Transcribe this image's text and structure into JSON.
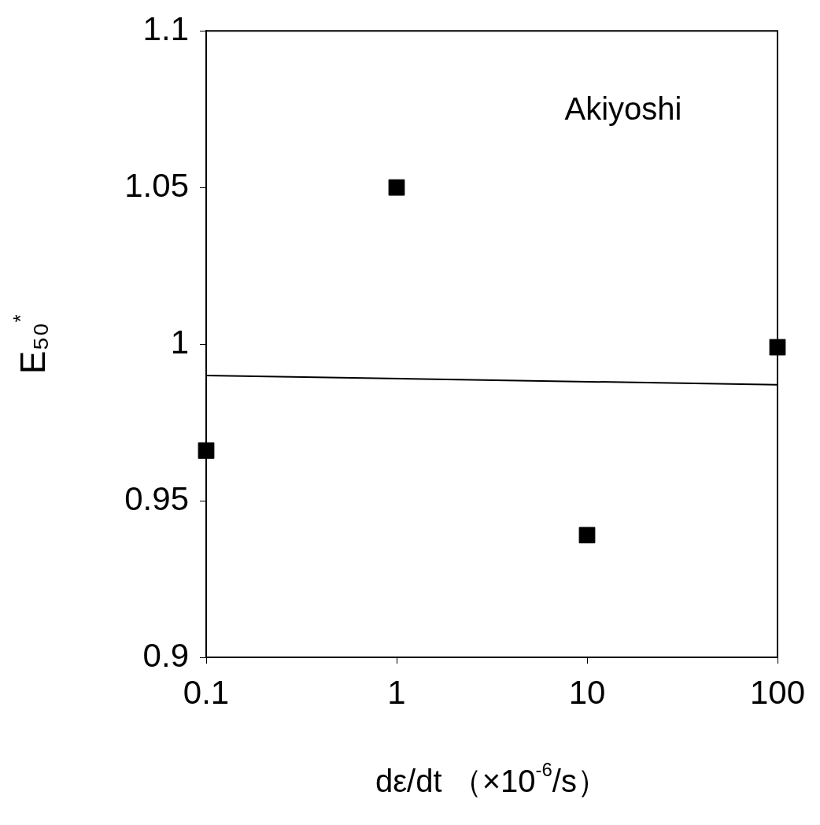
{
  "chart_data": {
    "type": "scatter",
    "xlabel": "dε/dt （×10$^{-6}$/s）",
    "ylabel": "E₅₀$^{*}$",
    "annotations": [
      "Akiyoshi"
    ],
    "log": "x",
    "grid": false,
    "legend": false,
    "marker": "square",
    "xlim": [
      0.1,
      100
    ],
    "xticks": [
      0.1,
      1,
      10,
      100
    ],
    "ylim": [
      0.9,
      1.1
    ],
    "yticks": [
      0.9,
      0.95,
      1,
      1.05,
      1.1
    ],
    "series": [
      {
        "color": "#000000",
        "x": [
          0.1,
          1,
          10,
          100
        ],
        "values": [
          0.966,
          1.05,
          0.939,
          0.999
        ]
      },
      {
        "type": "line",
        "color": "#000000",
        "marker": "none",
        "line_style": "solid",
        "x": [
          0.1,
          100
        ],
        "values": [
          0.99,
          0.987
        ]
      }
    ]
  }
}
